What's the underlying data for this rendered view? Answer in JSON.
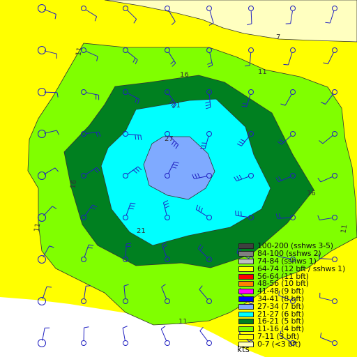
{
  "map": {
    "regions": [
      {
        "name": "white-background",
        "color": "#ffffff"
      },
      {
        "name": "yellow-7-11",
        "color": "#ffff00"
      },
      {
        "name": "pale-yellow-0-7",
        "color": "#ffffc0"
      },
      {
        "name": "lightgreen-11-16",
        "color": "#80ff00"
      },
      {
        "name": "green-16-21",
        "color": "#008020"
      },
      {
        "name": "cyan-21-27",
        "color": "#00ffff"
      },
      {
        "name": "blue-27-34",
        "color": "#7faaff"
      }
    ],
    "contour_labels": [
      "7",
      "11",
      "11",
      "11",
      "11",
      "11",
      "16",
      "16",
      "16",
      "21",
      "21",
      "27"
    ],
    "barb_color": "#2020c0"
  },
  "legend": {
    "items": [
      {
        "label": "100-200 (sshws 3-5)",
        "color": "#404040"
      },
      {
        "label": "84-100 (sshws 2)",
        "color": "#808080"
      },
      {
        "label": "74-84 (sshws 1)",
        "color": "#c0c0c0"
      },
      {
        "label": "64-74 (12 bft / sshws 1)",
        "color": "#ffff00"
      },
      {
        "label": "56-64 (11 bft)",
        "color": "#ff0000"
      },
      {
        "label": "48-56 (10 bft)",
        "color": "#ff8000"
      },
      {
        "label": "41-48 (9 bft)",
        "color": "#ff00ff"
      },
      {
        "label": "34-41 (8 bft)",
        "color": "#0000ff"
      },
      {
        "label": "27-34 (7 bft)",
        "color": "#7faaff"
      },
      {
        "label": "21-27 (6 bft)",
        "color": "#00ffff"
      },
      {
        "label": "16-21 (5 bft)",
        "color": "#008020"
      },
      {
        "label": "11-16 (4 bft)",
        "color": "#80ff00"
      },
      {
        "label": "7-11 (3 bft)",
        "color": "#ffff00"
      },
      {
        "label": "0-7 (<3 bft)",
        "color": "#ffffc0"
      }
    ],
    "units": "kts"
  }
}
